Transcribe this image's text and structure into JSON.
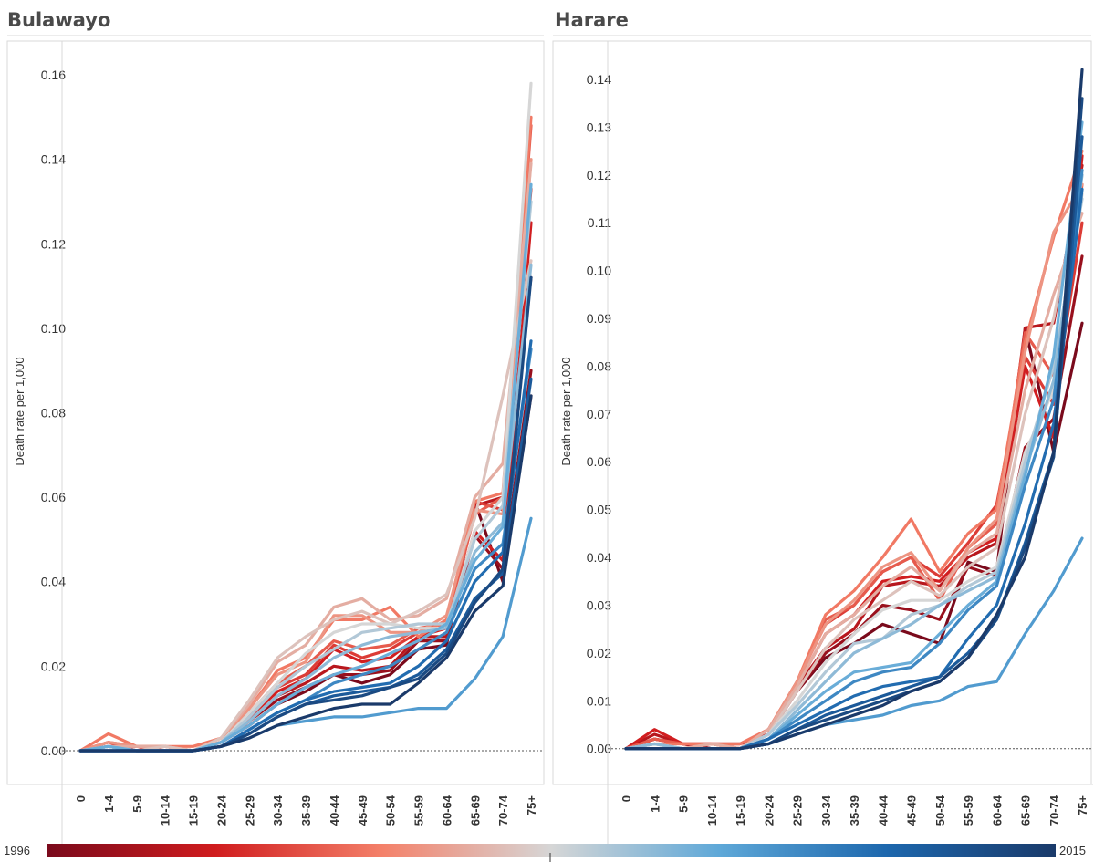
{
  "colors": {
    "scale": [
      "#7a0a1c",
      "#d01c1e",
      "#f4816a",
      "#d6d6d6",
      "#5ea8d8",
      "#1d67ad",
      "#1a3a6a"
    ],
    "frame": "#d9d9d9"
  },
  "legend": {
    "start_label": "1996",
    "end_label": "2015"
  },
  "chart_data": [
    {
      "type": "line",
      "title": "Bulawayo",
      "ylabel": "Death rate per 1,000",
      "xlabel": "",
      "ylim": [
        -0.008,
        0.168
      ],
      "yticks": [
        0.0,
        0.02,
        0.04,
        0.06,
        0.08,
        0.1,
        0.12,
        0.14,
        0.16
      ],
      "ytick_labels": [
        "0.00",
        "0.02",
        "0.04",
        "0.06",
        "0.08",
        "0.10",
        "0.12",
        "0.14",
        "0.16"
      ],
      "categories": [
        "0",
        "1-4",
        "5-9",
        "10-14",
        "15-19",
        "20-24",
        "25-29",
        "30-34",
        "35-39",
        "40-44",
        "45-49",
        "50-54",
        "55-59",
        "60-64",
        "65-69",
        "70-74",
        "75+"
      ],
      "grid": false,
      "zero_line": "dashed",
      "series": [
        {
          "year_index": 0.0,
          "values": [
            0.0,
            0.001,
            0.0,
            0.0,
            0.0,
            0.002,
            0.006,
            0.011,
            0.014,
            0.018,
            0.016,
            0.018,
            0.024,
            0.025,
            0.059,
            0.04,
            0.084
          ]
        },
        {
          "year_index": 0.06,
          "values": [
            0.0,
            0.001,
            0.0,
            0.0,
            0.0,
            0.002,
            0.007,
            0.012,
            0.015,
            0.018,
            0.018,
            0.019,
            0.026,
            0.026,
            0.051,
            0.043,
            0.09
          ]
        },
        {
          "year_index": 0.12,
          "values": [
            0.0,
            0.001,
            0.0,
            0.0,
            0.0,
            0.002,
            0.007,
            0.013,
            0.016,
            0.02,
            0.019,
            0.02,
            0.027,
            0.027,
            0.058,
            0.06,
            0.112
          ]
        },
        {
          "year_index": 0.17,
          "values": [
            0.0,
            0.001,
            0.001,
            0.0,
            0.0,
            0.002,
            0.008,
            0.014,
            0.017,
            0.024,
            0.021,
            0.022,
            0.027,
            0.029,
            0.052,
            0.045,
            0.125
          ]
        },
        {
          "year_index": 0.22,
          "values": [
            0.0,
            0.002,
            0.0,
            0.001,
            0.0,
            0.002,
            0.008,
            0.015,
            0.018,
            0.025,
            0.022,
            0.024,
            0.028,
            0.029,
            0.059,
            0.057,
            0.133
          ]
        },
        {
          "year_index": 0.27,
          "values": [
            0.0,
            0.002,
            0.001,
            0.001,
            0.0,
            0.003,
            0.009,
            0.016,
            0.02,
            0.026,
            0.024,
            0.025,
            0.029,
            0.03,
            0.056,
            0.06,
            0.148
          ]
        },
        {
          "year_index": 0.32,
          "values": [
            0.0,
            0.004,
            0.001,
            0.001,
            0.001,
            0.003,
            0.01,
            0.019,
            0.022,
            0.031,
            0.031,
            0.034,
            0.027,
            0.031,
            0.059,
            0.061,
            0.15
          ]
        },
        {
          "year_index": 0.37,
          "values": [
            0.0,
            0.002,
            0.001,
            0.001,
            0.0,
            0.003,
            0.01,
            0.018,
            0.021,
            0.032,
            0.032,
            0.028,
            0.028,
            0.032,
            0.057,
            0.056,
            0.14
          ]
        },
        {
          "year_index": 0.42,
          "values": [
            0.0,
            0.001,
            0.001,
            0.001,
            0.0,
            0.003,
            0.011,
            0.021,
            0.025,
            0.034,
            0.036,
            0.031,
            0.032,
            0.036,
            0.06,
            0.068,
            0.139
          ]
        },
        {
          "year_index": 0.46,
          "values": [
            0.0,
            0.001,
            0.0,
            0.001,
            0.0,
            0.003,
            0.012,
            0.022,
            0.027,
            0.031,
            0.033,
            0.03,
            0.033,
            0.037,
            0.055,
            0.084,
            0.116
          ]
        },
        {
          "year_index": 0.5,
          "values": [
            0.0,
            0.001,
            0.0,
            0.0,
            0.0,
            0.002,
            0.009,
            0.016,
            0.023,
            0.028,
            0.03,
            0.03,
            0.029,
            0.029,
            0.052,
            0.06,
            0.158
          ]
        },
        {
          "year_index": 0.55,
          "values": [
            0.0,
            0.001,
            0.0,
            0.0,
            0.0,
            0.002,
            0.008,
            0.015,
            0.02,
            0.024,
            0.028,
            0.029,
            0.03,
            0.03,
            0.05,
            0.058,
            0.13
          ]
        },
        {
          "year_index": 0.6,
          "values": [
            0.0,
            0.001,
            0.0,
            0.0,
            0.0,
            0.002,
            0.007,
            0.013,
            0.017,
            0.022,
            0.025,
            0.027,
            0.028,
            0.029,
            0.047,
            0.054,
            0.115
          ]
        },
        {
          "year_index": 0.65,
          "values": [
            0.0,
            0.001,
            0.0,
            0.0,
            0.0,
            0.002,
            0.006,
            0.011,
            0.015,
            0.018,
            0.02,
            0.023,
            0.026,
            0.03,
            0.045,
            0.053,
            0.134
          ]
        },
        {
          "year_index": 0.7,
          "values": [
            0.0,
            0.0,
            0.0,
            0.0,
            0.0,
            0.001,
            0.003,
            0.006,
            0.007,
            0.008,
            0.008,
            0.009,
            0.01,
            0.01,
            0.017,
            0.027,
            0.055
          ]
        },
        {
          "year_index": 0.75,
          "values": [
            0.0,
            0.0,
            0.0,
            0.0,
            0.0,
            0.001,
            0.005,
            0.009,
            0.012,
            0.016,
            0.018,
            0.02,
            0.024,
            0.028,
            0.043,
            0.049,
            0.095
          ]
        },
        {
          "year_index": 0.82,
          "values": [
            0.0,
            0.0,
            0.0,
            0.0,
            0.0,
            0.001,
            0.005,
            0.009,
            0.012,
            0.014,
            0.015,
            0.016,
            0.02,
            0.026,
            0.04,
            0.047,
            0.097
          ]
        },
        {
          "year_index": 0.88,
          "values": [
            0.0,
            0.0,
            0.0,
            0.0,
            0.0,
            0.001,
            0.004,
            0.008,
            0.011,
            0.013,
            0.014,
            0.015,
            0.018,
            0.024,
            0.036,
            0.042,
            0.088
          ]
        },
        {
          "year_index": 0.94,
          "values": [
            0.0,
            0.0,
            0.0,
            0.0,
            0.0,
            0.001,
            0.004,
            0.008,
            0.011,
            0.012,
            0.013,
            0.015,
            0.017,
            0.023,
            0.035,
            0.043,
            0.112
          ]
        },
        {
          "year_index": 1.0,
          "values": [
            0.0,
            0.0,
            0.0,
            0.0,
            0.0,
            0.001,
            0.003,
            0.006,
            0.008,
            0.01,
            0.011,
            0.011,
            0.016,
            0.022,
            0.033,
            0.039,
            0.084
          ]
        }
      ]
    },
    {
      "type": "line",
      "title": "Harare",
      "ylabel": "Death rate per 1,000",
      "xlabel": "",
      "ylim": [
        -0.0075,
        0.148
      ],
      "yticks": [
        0.0,
        0.01,
        0.02,
        0.03,
        0.04,
        0.05,
        0.06,
        0.07,
        0.08,
        0.09,
        0.1,
        0.11,
        0.12,
        0.13,
        0.14
      ],
      "ytick_labels": [
        "0.00",
        "0.01",
        "0.02",
        "0.03",
        "0.04",
        "0.05",
        "0.06",
        "0.07",
        "0.08",
        "0.09",
        "0.10",
        "0.11",
        "0.12",
        "0.13",
        "0.14"
      ],
      "categories": [
        "0",
        "1-4",
        "5-9",
        "10-14",
        "15-19",
        "20-24",
        "25-29",
        "30-34",
        "35-39",
        "40-44",
        "45-49",
        "50-54",
        "55-59",
        "60-64",
        "65-69",
        "70-74",
        "75+"
      ],
      "grid": false,
      "zero_line": "dashed",
      "series": [
        {
          "year_index": 0.0,
          "values": [
            0.0,
            0.002,
            0.001,
            0.0,
            0.0,
            0.003,
            0.012,
            0.019,
            0.022,
            0.026,
            0.024,
            0.022,
            0.039,
            0.037,
            0.088,
            0.062,
            0.089
          ]
        },
        {
          "year_index": 0.06,
          "values": [
            0.0,
            0.002,
            0.001,
            0.0,
            0.0,
            0.003,
            0.012,
            0.02,
            0.024,
            0.03,
            0.029,
            0.027,
            0.038,
            0.036,
            0.063,
            0.069,
            0.103
          ]
        },
        {
          "year_index": 0.12,
          "values": [
            0.0,
            0.003,
            0.001,
            0.001,
            0.001,
            0.003,
            0.013,
            0.021,
            0.025,
            0.034,
            0.035,
            0.034,
            0.04,
            0.043,
            0.088,
            0.089,
            0.122
          ]
        },
        {
          "year_index": 0.17,
          "values": [
            0.0,
            0.004,
            0.001,
            0.001,
            0.001,
            0.004,
            0.013,
            0.024,
            0.028,
            0.035,
            0.036,
            0.035,
            0.041,
            0.044,
            0.08,
            0.065,
            0.124
          ]
        },
        {
          "year_index": 0.22,
          "values": [
            0.0,
            0.002,
            0.001,
            0.001,
            0.0,
            0.004,
            0.014,
            0.026,
            0.03,
            0.037,
            0.04,
            0.036,
            0.043,
            0.051,
            0.082,
            0.072,
            0.11
          ]
        },
        {
          "year_index": 0.27,
          "values": [
            0.0,
            0.002,
            0.001,
            0.001,
            0.0,
            0.004,
            0.014,
            0.027,
            0.03,
            0.037,
            0.04,
            0.031,
            0.042,
            0.047,
            0.087,
            0.078,
            0.118
          ]
        },
        {
          "year_index": 0.32,
          "values": [
            0.0,
            0.001,
            0.001,
            0.001,
            0.001,
            0.004,
            0.014,
            0.028,
            0.033,
            0.04,
            0.048,
            0.037,
            0.045,
            0.05,
            0.085,
            0.107,
            0.125
          ]
        },
        {
          "year_index": 0.37,
          "values": [
            0.0,
            0.001,
            0.0,
            0.001,
            0.0,
            0.004,
            0.014,
            0.026,
            0.031,
            0.038,
            0.041,
            0.033,
            0.042,
            0.048,
            0.083,
            0.108,
            0.118
          ]
        },
        {
          "year_index": 0.42,
          "values": [
            0.0,
            0.001,
            0.0,
            0.001,
            0.0,
            0.004,
            0.013,
            0.024,
            0.028,
            0.034,
            0.038,
            0.033,
            0.041,
            0.045,
            0.075,
            0.095,
            0.112
          ]
        },
        {
          "year_index": 0.46,
          "values": [
            0.0,
            0.001,
            0.0,
            0.0,
            0.0,
            0.003,
            0.012,
            0.021,
            0.027,
            0.031,
            0.035,
            0.032,
            0.038,
            0.042,
            0.07,
            0.09,
            0.12
          ]
        },
        {
          "year_index": 0.5,
          "values": [
            0.0,
            0.001,
            0.0,
            0.0,
            0.0,
            0.003,
            0.01,
            0.018,
            0.024,
            0.029,
            0.031,
            0.031,
            0.035,
            0.038,
            0.062,
            0.075,
            0.116
          ]
        },
        {
          "year_index": 0.55,
          "values": [
            0.0,
            0.001,
            0.0,
            0.0,
            0.0,
            0.003,
            0.009,
            0.016,
            0.022,
            0.023,
            0.028,
            0.03,
            0.034,
            0.037,
            0.06,
            0.08,
            0.115
          ]
        },
        {
          "year_index": 0.6,
          "values": [
            0.0,
            0.001,
            0.0,
            0.0,
            0.0,
            0.002,
            0.008,
            0.014,
            0.02,
            0.023,
            0.026,
            0.03,
            0.033,
            0.036,
            0.058,
            0.077,
            0.12
          ]
        },
        {
          "year_index": 0.65,
          "values": [
            0.0,
            0.0,
            0.0,
            0.0,
            0.0,
            0.002,
            0.007,
            0.012,
            0.016,
            0.017,
            0.018,
            0.024,
            0.03,
            0.035,
            0.057,
            0.082,
            0.131
          ]
        },
        {
          "year_index": 0.7,
          "values": [
            0.0,
            0.0,
            0.0,
            0.0,
            0.0,
            0.001,
            0.003,
            0.005,
            0.006,
            0.007,
            0.009,
            0.01,
            0.013,
            0.014,
            0.024,
            0.033,
            0.044
          ]
        },
        {
          "year_index": 0.75,
          "values": [
            0.0,
            0.0,
            0.0,
            0.0,
            0.0,
            0.002,
            0.006,
            0.01,
            0.014,
            0.016,
            0.017,
            0.022,
            0.029,
            0.034,
            0.055,
            0.073,
            0.121
          ]
        },
        {
          "year_index": 0.82,
          "values": [
            0.0,
            0.0,
            0.0,
            0.0,
            0.0,
            0.002,
            0.005,
            0.008,
            0.011,
            0.013,
            0.014,
            0.015,
            0.023,
            0.03,
            0.047,
            0.068,
            0.117
          ]
        },
        {
          "year_index": 0.88,
          "values": [
            0.0,
            0.0,
            0.0,
            0.0,
            0.0,
            0.001,
            0.004,
            0.007,
            0.009,
            0.011,
            0.013,
            0.015,
            0.02,
            0.027,
            0.043,
            0.062,
            0.128
          ]
        },
        {
          "year_index": 0.94,
          "values": [
            0.0,
            0.0,
            0.0,
            0.0,
            0.0,
            0.001,
            0.004,
            0.006,
            0.008,
            0.01,
            0.012,
            0.014,
            0.019,
            0.027,
            0.042,
            0.061,
            0.136
          ]
        },
        {
          "year_index": 1.0,
          "values": [
            0.0,
            0.0,
            0.0,
            0.0,
            0.0,
            0.001,
            0.003,
            0.005,
            0.007,
            0.009,
            0.012,
            0.014,
            0.019,
            0.028,
            0.04,
            0.062,
            0.142
          ]
        }
      ]
    }
  ]
}
